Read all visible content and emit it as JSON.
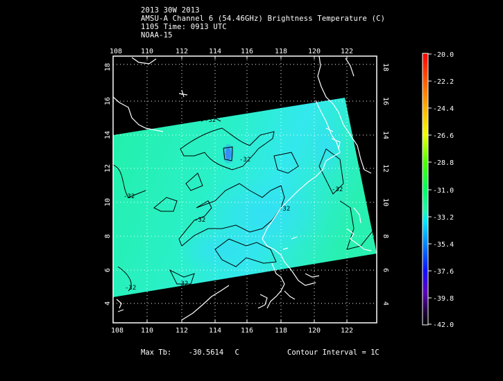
{
  "header": {
    "title_line1": "2013 30W 2013",
    "title_line2": "AMSU-A Channel 6 (54.46GHz) Brightness Temperature (C)",
    "title_line3": "1105 Time: 0913 UTC",
    "title_line4": "NOAA-15"
  },
  "map": {
    "x_ticks": [
      "108",
      "110",
      "112",
      "114",
      "116",
      "118",
      "120",
      "122"
    ],
    "y_ticks": [
      "4",
      "6",
      "8",
      "10",
      "12",
      "14",
      "16",
      "18"
    ],
    "contour_labels": [
      "-32",
      "-32",
      "-32",
      "-32",
      "-32",
      "-32",
      "-32",
      "-32"
    ],
    "colors": {
      "swath_main": "#22f5b0",
      "swath_cool": "#33e8ee",
      "cold_spot": "#2f6cff",
      "coast": "#ffffff",
      "contour": "#000000"
    }
  },
  "colorbar": {
    "labels": [
      "-20.0",
      "-22.2",
      "-24.4",
      "-26.6",
      "-28.8",
      "-31.0",
      "-33.2",
      "-35.4",
      "-37.6",
      "-39.8",
      "-42.0"
    ]
  },
  "footer": {
    "max_label": "Max Tb:",
    "max_value": "-30.5614",
    "max_unit": "C",
    "contour_interval": "Contour Interval = 1C"
  }
}
